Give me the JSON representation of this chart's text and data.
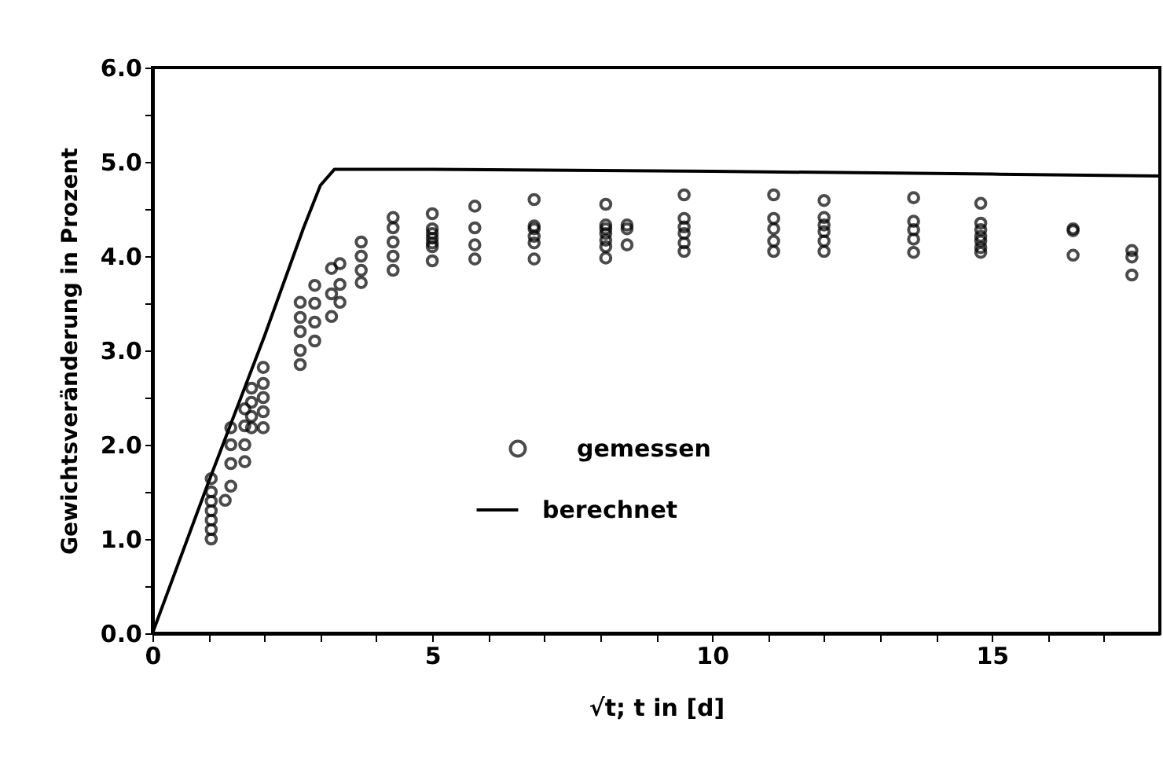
{
  "chart_data": {
    "type": "scatter",
    "xlabel": "√t; t in [d]",
    "ylabel": "Gewichtsveränderung in Prozent",
    "xlim": [
      0,
      18
    ],
    "ylim": [
      0,
      6
    ],
    "xticks": [
      0,
      {
        "value": 1,
        "label": null
      },
      {
        "value": 2,
        "label": null
      },
      {
        "value": 3,
        "label": null
      },
      {
        "value": 4,
        "label": null
      },
      5,
      {
        "value": 6,
        "label": null
      },
      {
        "value": 7,
        "label": null
      },
      {
        "value": 8,
        "label": null
      },
      {
        "value": 9,
        "label": null
      },
      10,
      {
        "value": 11,
        "label": null
      },
      {
        "value": 12,
        "label": null
      },
      {
        "value": 13,
        "label": null
      },
      {
        "value": 14,
        "label": null
      },
      15,
      {
        "value": 16,
        "label": null
      },
      {
        "value": 17,
        "label": null
      }
    ],
    "yticks": [
      {
        "value": 0,
        "label": "0.0"
      },
      {
        "value": 0.5,
        "label": null
      },
      {
        "value": 1,
        "label": "1.0"
      },
      {
        "value": 1.5,
        "label": null
      },
      {
        "value": 2,
        "label": "2.0"
      },
      {
        "value": 2.5,
        "label": null
      },
      {
        "value": 3,
        "label": "3.0"
      },
      {
        "value": 3.5,
        "label": null
      },
      {
        "value": 4,
        "label": "4.0"
      },
      {
        "value": 4.5,
        "label": null
      },
      {
        "value": 5,
        "label": "5.0"
      },
      {
        "value": 5.5,
        "label": null
      },
      {
        "value": 6,
        "label": "6.0"
      }
    ],
    "legend": "center",
    "grid": false,
    "series": [
      {
        "name": "gemessen",
        "marker": "circle",
        "color": "#000000",
        "x": [
          1.05,
          1.05,
          1.05,
          1.05,
          1.05,
          1.05,
          1.05,
          1.3,
          1.4,
          1.4,
          1.4,
          1.4,
          1.65,
          1.65,
          1.65,
          1.65,
          1.77,
          1.77,
          1.77,
          1.77,
          1.98,
          1.98,
          1.98,
          1.98,
          1.98,
          2.64,
          2.64,
          2.64,
          2.64,
          2.64,
          2.9,
          2.9,
          2.9,
          2.9,
          3.2,
          3.2,
          3.2,
          3.35,
          3.35,
          3.35,
          3.73,
          3.73,
          3.73,
          3.73,
          4.3,
          4.3,
          4.3,
          4.3,
          4.3,
          5.0,
          5.0,
          5.0,
          5.0,
          5.0,
          5.0,
          5.0,
          5.76,
          5.76,
          5.76,
          5.76,
          6.82,
          6.82,
          6.82,
          6.82,
          6.82,
          6.82,
          8.1,
          8.1,
          8.1,
          8.1,
          8.1,
          8.1,
          8.1,
          8.48,
          8.48,
          8.48,
          9.5,
          9.5,
          9.5,
          9.5,
          9.5,
          9.5,
          11.1,
          11.1,
          11.1,
          11.1,
          11.1,
          12.0,
          12.0,
          12.0,
          12.0,
          12.0,
          12.0,
          13.6,
          13.6,
          13.6,
          13.6,
          13.6,
          14.8,
          14.8,
          14.8,
          14.8,
          14.8,
          14.8,
          14.8,
          16.45,
          16.45,
          16.45,
          17.5,
          17.5,
          17.5
        ],
        "values": [
          1.0,
          1.1,
          1.2,
          1.3,
          1.4,
          1.5,
          1.64,
          1.41,
          1.56,
          1.8,
          2.0,
          2.18,
          1.82,
          2.0,
          2.2,
          2.38,
          2.18,
          2.3,
          2.45,
          2.6,
          2.18,
          2.35,
          2.5,
          2.65,
          2.82,
          2.85,
          3.0,
          3.2,
          3.35,
          3.51,
          3.1,
          3.3,
          3.5,
          3.69,
          3.36,
          3.6,
          3.87,
          3.51,
          3.7,
          3.92,
          3.72,
          3.85,
          4.0,
          4.15,
          3.85,
          4.0,
          4.15,
          4.3,
          4.41,
          3.95,
          4.1,
          4.14,
          4.19,
          4.24,
          4.29,
          4.45,
          3.97,
          4.12,
          4.3,
          4.53,
          3.97,
          4.14,
          4.21,
          4.29,
          4.32,
          4.6,
          3.98,
          4.1,
          4.17,
          4.24,
          4.29,
          4.33,
          4.55,
          4.12,
          4.29,
          4.33,
          4.05,
          4.14,
          4.24,
          4.31,
          4.4,
          4.65,
          4.05,
          4.16,
          4.29,
          4.4,
          4.65,
          4.05,
          4.16,
          4.26,
          4.33,
          4.41,
          4.59,
          4.04,
          4.18,
          4.28,
          4.37,
          4.62,
          4.04,
          4.09,
          4.16,
          4.21,
          4.28,
          4.35,
          4.56,
          4.01,
          4.27,
          4.29,
          3.8,
          3.99,
          4.06
        ]
      },
      {
        "name": "berechnet",
        "type": "line",
        "line_style": "solid",
        "color": "#000000",
        "x": [
          0,
          1,
          2,
          2.7,
          3.0,
          3.25,
          5,
          10,
          15,
          18
        ],
        "values": [
          0,
          1.6,
          3.15,
          4.3,
          4.75,
          4.92,
          4.92,
          4.9,
          4.87,
          4.85
        ]
      }
    ]
  }
}
